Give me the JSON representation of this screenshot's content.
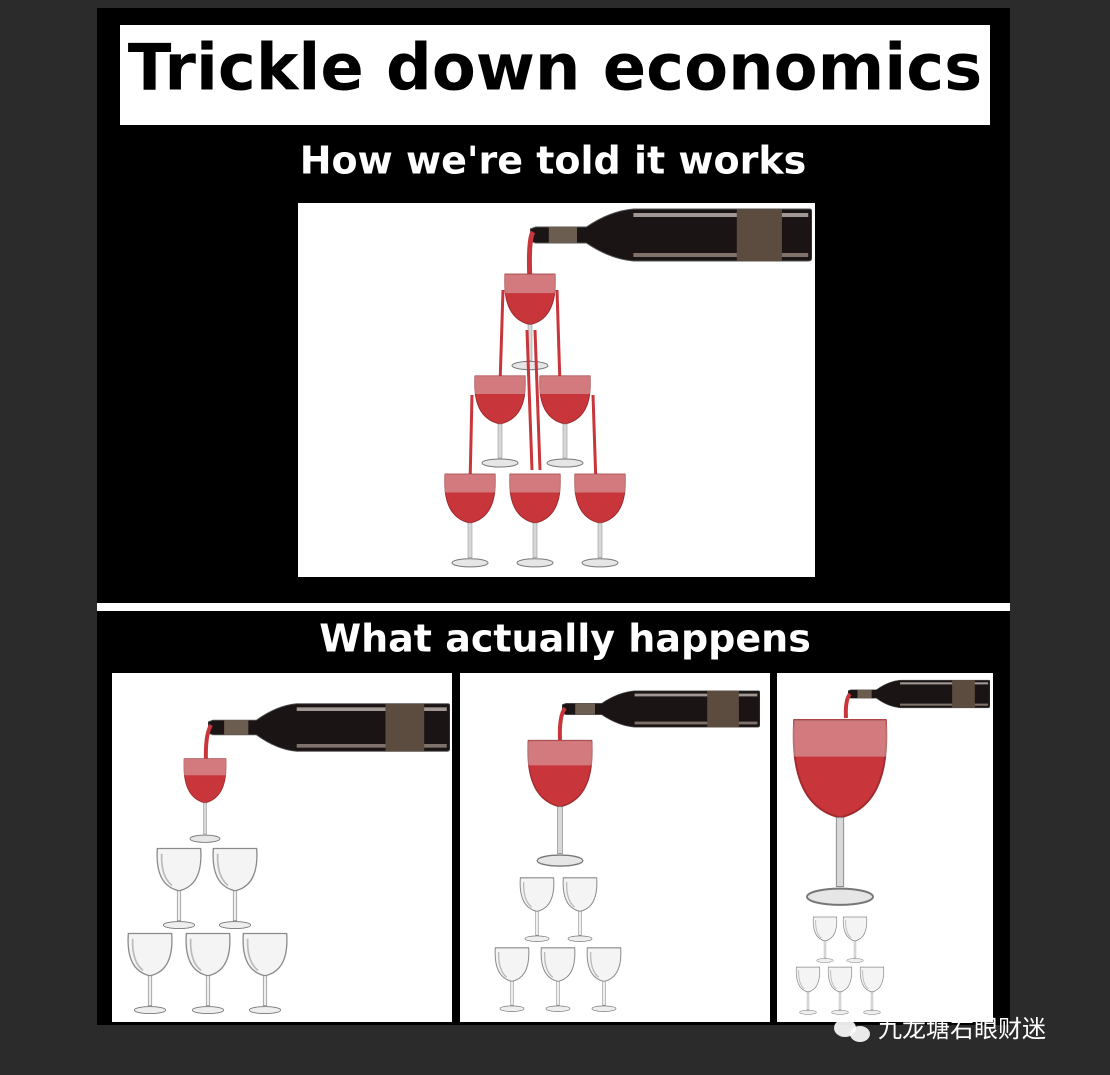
{
  "header": {
    "title": "Trickle down economics"
  },
  "sections": [
    {
      "heading": "How we're told it works"
    },
    {
      "heading": "What actually happens"
    }
  ],
  "watermark": "九龙塘右眼财迷"
}
